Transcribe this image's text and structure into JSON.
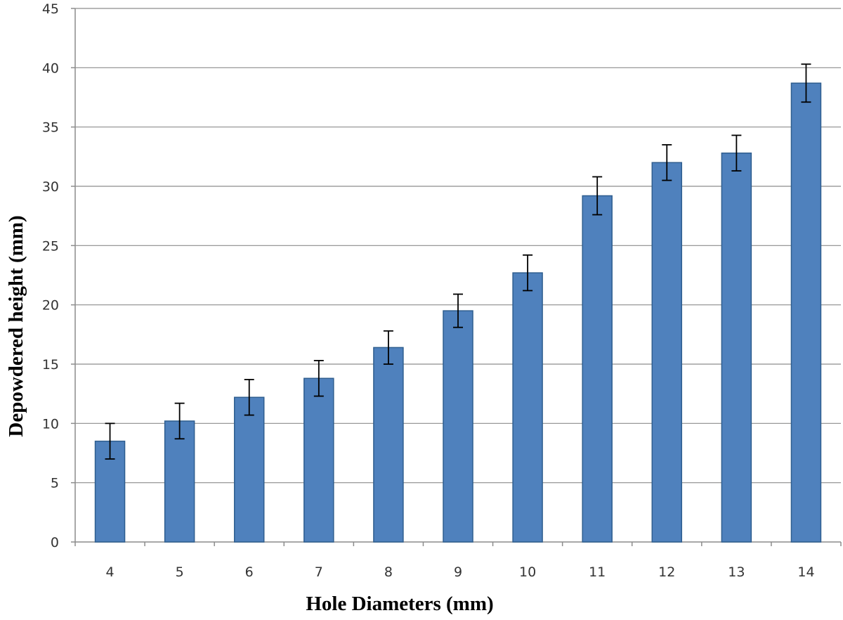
{
  "chart_data": {
    "type": "bar",
    "xlabel": "Hole Diameters (mm)",
    "ylabel": "Depowdered height (mm)",
    "categories": [
      "4",
      "5",
      "6",
      "7",
      "8",
      "9",
      "10",
      "11",
      "12",
      "13",
      "14"
    ],
    "series": [
      {
        "values": [
          8.5,
          10.2,
          12.2,
          13.8,
          16.4,
          19.5,
          22.7,
          29.2,
          32.0,
          32.8,
          38.7
        ],
        "error": [
          1.5,
          1.5,
          1.5,
          1.5,
          1.4,
          1.4,
          1.5,
          1.6,
          1.5,
          1.5,
          1.6
        ]
      }
    ],
    "ylim": [
      0,
      45
    ],
    "yticks": [
      0,
      5,
      10,
      15,
      20,
      25,
      30,
      35,
      40,
      45
    ],
    "grid": true,
    "legend": "none",
    "colors": {
      "bar_fill": "#4f81bd",
      "bar_edge": "#2f5e8f",
      "gridline": "#8c8c8c",
      "error_bar": "#000000"
    }
  }
}
